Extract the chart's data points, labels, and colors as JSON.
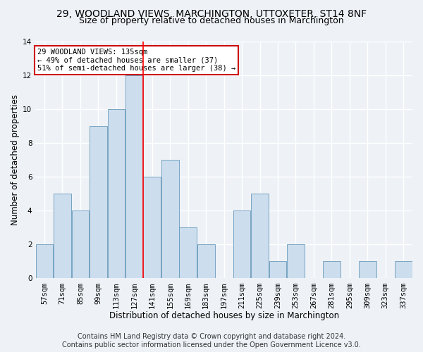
{
  "title": "29, WOODLAND VIEWS, MARCHINGTON, UTTOXETER, ST14 8NF",
  "subtitle": "Size of property relative to detached houses in Marchington",
  "xlabel": "Distribution of detached houses by size in Marchington",
  "ylabel": "Number of detached properties",
  "bin_labels": [
    "57sqm",
    "71sqm",
    "85sqm",
    "99sqm",
    "113sqm",
    "127sqm",
    "141sqm",
    "155sqm",
    "169sqm",
    "183sqm",
    "197sqm",
    "211sqm",
    "225sqm",
    "239sqm",
    "253sqm",
    "267sqm",
    "281sqm",
    "295sqm",
    "309sqm",
    "323sqm",
    "337sqm"
  ],
  "bar_heights": [
    2,
    5,
    4,
    9,
    10,
    12,
    6,
    7,
    3,
    2,
    0,
    4,
    5,
    1,
    2,
    0,
    1,
    0,
    1,
    0,
    1
  ],
  "bar_color": "#ccdded",
  "bar_edge_color": "#6699bb",
  "red_line_x": 6.0,
  "annotation_text": "29 WOODLAND VIEWS: 135sqm\n← 49% of detached houses are smaller (37)\n51% of semi-detached houses are larger (38) →",
  "annotation_box_color": "#ffffff",
  "annotation_box_edge": "#cc0000",
  "footer_line1": "Contains HM Land Registry data © Crown copyright and database right 2024.",
  "footer_line2": "Contains public sector information licensed under the Open Government Licence v3.0.",
  "ylim": [
    0,
    14
  ],
  "yticks": [
    0,
    2,
    4,
    6,
    8,
    10,
    12,
    14
  ],
  "bg_color": "#eef2f7",
  "grid_color": "#ffffff",
  "title_fontsize": 10,
  "subtitle_fontsize": 9,
  "axis_label_fontsize": 8.5,
  "tick_fontsize": 7.5,
  "footer_fontsize": 7
}
